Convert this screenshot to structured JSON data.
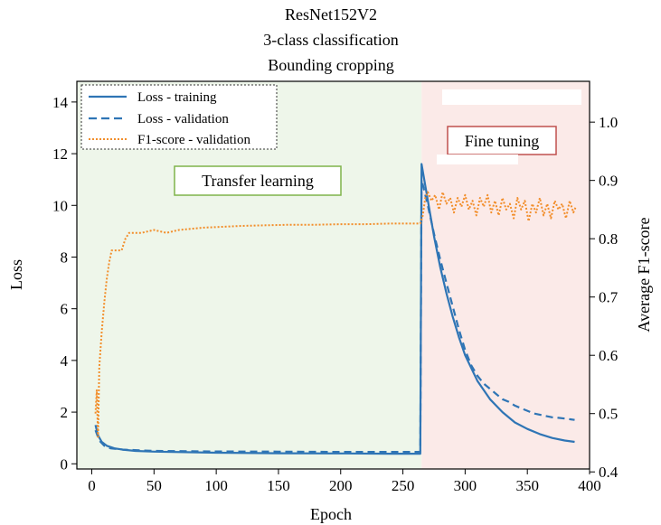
{
  "chart_data": {
    "type": "line",
    "title": [
      "ResNet152V2",
      "3-class classification",
      "Bounding cropping"
    ],
    "xlabel": "Epoch",
    "ylabel_left": "Loss",
    "ylabel_right": "Average F1-score",
    "xlim": [
      -12,
      400
    ],
    "ylim_left": [
      -0.2,
      14.8
    ],
    "ylim_right": [
      0.405,
      1.07
    ],
    "x_ticks": [
      "0",
      "50",
      "100",
      "150",
      "200",
      "250",
      "300",
      "350",
      "400"
    ],
    "y_left_ticks": [
      "0",
      "2",
      "4",
      "6",
      "8",
      "10",
      "12",
      "14"
    ],
    "y_right_ticks": [
      "0.4",
      "0.5",
      "0.6",
      "0.7",
      "0.8",
      "0.9",
      "1.0"
    ],
    "grid": false,
    "legend_position": "top-left",
    "phases": [
      {
        "label": "Transfer learning",
        "x_range": [
          -12,
          265
        ],
        "color": "#eef6ea",
        "label_border": "#7fb34a"
      },
      {
        "label": "Fine tuning",
        "x_range": [
          265,
          400
        ],
        "color": "#fbeae8",
        "label_border": "#c0504d"
      }
    ],
    "series": [
      {
        "name": "Loss - training",
        "axis": "left",
        "style": "solid",
        "color": "#2f75b5",
        "points": [
          [
            3,
            1.5
          ],
          [
            5,
            1.1
          ],
          [
            8,
            0.85
          ],
          [
            12,
            0.7
          ],
          [
            18,
            0.6
          ],
          [
            25,
            0.55
          ],
          [
            35,
            0.5
          ],
          [
            50,
            0.47
          ],
          [
            75,
            0.45
          ],
          [
            100,
            0.43
          ],
          [
            150,
            0.41
          ],
          [
            200,
            0.4
          ],
          [
            240,
            0.39
          ],
          [
            264,
            0.39
          ],
          [
            265,
            11.6
          ],
          [
            270,
            10.2
          ],
          [
            275,
            8.8
          ],
          [
            280,
            7.6
          ],
          [
            285,
            6.6
          ],
          [
            290,
            5.7
          ],
          [
            295,
            4.9
          ],
          [
            300,
            4.2
          ],
          [
            310,
            3.2
          ],
          [
            320,
            2.5
          ],
          [
            330,
            2.0
          ],
          [
            340,
            1.6
          ],
          [
            350,
            1.35
          ],
          [
            360,
            1.15
          ],
          [
            370,
            1.0
          ],
          [
            380,
            0.9
          ],
          [
            388,
            0.85
          ]
        ]
      },
      {
        "name": "Loss - validation",
        "axis": "left",
        "style": "dashed",
        "color": "#2f75b5",
        "points": [
          [
            3,
            1.3
          ],
          [
            6,
            0.9
          ],
          [
            10,
            0.7
          ],
          [
            15,
            0.6
          ],
          [
            25,
            0.55
          ],
          [
            50,
            0.5
          ],
          [
            100,
            0.48
          ],
          [
            150,
            0.47
          ],
          [
            200,
            0.46
          ],
          [
            264,
            0.46
          ],
          [
            265,
            11.0
          ],
          [
            270,
            10.0
          ],
          [
            275,
            8.9
          ],
          [
            280,
            7.9
          ],
          [
            285,
            7.0
          ],
          [
            290,
            6.1
          ],
          [
            295,
            5.2
          ],
          [
            300,
            4.4
          ],
          [
            305,
            3.8
          ],
          [
            310,
            3.4
          ],
          [
            315,
            3.1
          ],
          [
            320,
            2.9
          ],
          [
            325,
            2.7
          ],
          [
            330,
            2.5
          ],
          [
            335,
            2.4
          ],
          [
            340,
            2.25
          ],
          [
            345,
            2.15
          ],
          [
            350,
            2.05
          ],
          [
            355,
            1.95
          ],
          [
            360,
            1.9
          ],
          [
            365,
            1.85
          ],
          [
            370,
            1.8
          ],
          [
            375,
            1.78
          ],
          [
            380,
            1.75
          ],
          [
            385,
            1.72
          ],
          [
            388,
            1.7
          ]
        ]
      },
      {
        "name": "F1-score - validation",
        "axis": "right",
        "style": "dotted",
        "color": "#f28e2b",
        "points": [
          [
            3,
            0.5
          ],
          [
            4,
            0.54
          ],
          [
            5,
            0.46
          ],
          [
            6,
            0.58
          ],
          [
            8,
            0.64
          ],
          [
            10,
            0.69
          ],
          [
            12,
            0.73
          ],
          [
            14,
            0.76
          ],
          [
            16,
            0.78
          ],
          [
            18,
            0.78
          ],
          [
            20,
            0.78
          ],
          [
            24,
            0.78
          ],
          [
            27,
            0.8
          ],
          [
            30,
            0.81
          ],
          [
            40,
            0.81
          ],
          [
            50,
            0.815
          ],
          [
            60,
            0.81
          ],
          [
            70,
            0.815
          ],
          [
            80,
            0.817
          ],
          [
            90,
            0.819
          ],
          [
            100,
            0.82
          ],
          [
            120,
            0.822
          ],
          [
            140,
            0.823
          ],
          [
            160,
            0.824
          ],
          [
            180,
            0.824
          ],
          [
            200,
            0.825
          ],
          [
            220,
            0.825
          ],
          [
            240,
            0.826
          ],
          [
            264,
            0.826
          ],
          [
            266,
            0.84
          ],
          [
            268,
            0.87
          ],
          [
            270,
            0.88
          ],
          [
            273,
            0.865
          ],
          [
            276,
            0.875
          ],
          [
            279,
            0.85
          ],
          [
            282,
            0.88
          ],
          [
            285,
            0.86
          ],
          [
            288,
            0.87
          ],
          [
            291,
            0.845
          ],
          [
            294,
            0.87
          ],
          [
            297,
            0.855
          ],
          [
            300,
            0.875
          ],
          [
            303,
            0.85
          ],
          [
            306,
            0.865
          ],
          [
            309,
            0.84
          ],
          [
            312,
            0.87
          ],
          [
            315,
            0.855
          ],
          [
            318,
            0.875
          ],
          [
            321,
            0.845
          ],
          [
            324,
            0.865
          ],
          [
            327,
            0.84
          ],
          [
            330,
            0.87
          ],
          [
            333,
            0.85
          ],
          [
            336,
            0.86
          ],
          [
            339,
            0.835
          ],
          [
            342,
            0.87
          ],
          [
            345,
            0.85
          ],
          [
            348,
            0.865
          ],
          [
            351,
            0.83
          ],
          [
            354,
            0.86
          ],
          [
            357,
            0.845
          ],
          [
            360,
            0.87
          ],
          [
            363,
            0.84
          ],
          [
            366,
            0.86
          ],
          [
            369,
            0.835
          ],
          [
            372,
            0.865
          ],
          [
            375,
            0.85
          ],
          [
            378,
            0.86
          ],
          [
            381,
            0.835
          ],
          [
            384,
            0.865
          ],
          [
            387,
            0.845
          ],
          [
            389,
            0.855
          ]
        ]
      }
    ]
  }
}
